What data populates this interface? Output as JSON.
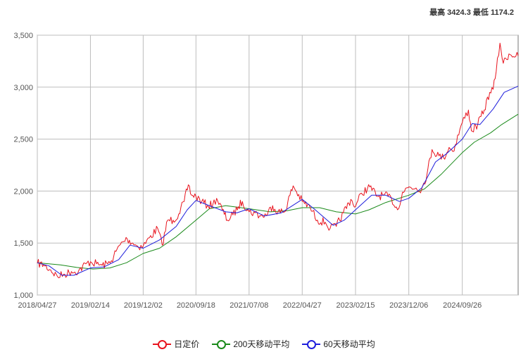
{
  "header": {
    "high_label": "最高",
    "high_value": "3424.3",
    "low_label": "最低",
    "low_value": "1174.2"
  },
  "colors": {
    "price": "#e8141e",
    "ma200": "#1a8a1a",
    "ma60": "#1f1fdc",
    "grid": "#bdbdbd",
    "axis": "#777777"
  },
  "chart_data": {
    "type": "line",
    "title": "",
    "xlabel": "",
    "ylabel": "",
    "ylim": [
      1000,
      3500
    ],
    "yticks": [
      1000,
      1500,
      2000,
      2500,
      3000,
      3500
    ],
    "ytick_labels": [
      "1,000",
      "1,500",
      "2,000",
      "2,500",
      "3,000",
      "3,500"
    ],
    "xlim": [
      "2018/04/27",
      "2025/07/31"
    ],
    "xticks": [
      "2018/04/27",
      "2019/02/14",
      "2019/12/02",
      "2020/09/18",
      "2021/07/08",
      "2022/04/27",
      "2023/02/15",
      "2023/12/06",
      "2024/09/26"
    ],
    "grid": true,
    "legend_position": "bottom",
    "series": [
      {
        "name": "日定价",
        "key": "price",
        "points": [
          [
            "2018/04/27",
            1305
          ],
          [
            "2018/06/01",
            1290
          ],
          [
            "2018/07/10",
            1240
          ],
          [
            "2018/08/16",
            1178
          ],
          [
            "2018/09/25",
            1200
          ],
          [
            "2018/11/01",
            1225
          ],
          [
            "2018/12/10",
            1230
          ],
          [
            "2019/01/20",
            1300
          ],
          [
            "2019/02/14",
            1320
          ],
          [
            "2019/03/20",
            1300
          ],
          [
            "2019/04/20",
            1285
          ],
          [
            "2019/05/20",
            1300
          ],
          [
            "2019/06/10",
            1330
          ],
          [
            "2019/07/05",
            1420
          ],
          [
            "2019/08/10",
            1510
          ],
          [
            "2019/09/05",
            1540
          ],
          [
            "2019/10/05",
            1500
          ],
          [
            "2019/11/01",
            1470
          ],
          [
            "2019/12/02",
            1470
          ],
          [
            "2020/01/05",
            1550
          ],
          [
            "2020/02/20",
            1640
          ],
          [
            "2020/03/16",
            1480
          ],
          [
            "2020/04/15",
            1720
          ],
          [
            "2020/05/15",
            1720
          ],
          [
            "2020/06/15",
            1780
          ],
          [
            "2020/07/15",
            1900
          ],
          [
            "2020/08/07",
            2060
          ],
          [
            "2020/08/25",
            1960
          ],
          [
            "2020/09/18",
            1950
          ],
          [
            "2020/10/20",
            1900
          ],
          [
            "2020/11/20",
            1860
          ],
          [
            "2020/12/20",
            1870
          ],
          [
            "2021/01/10",
            1930
          ],
          [
            "2021/02/10",
            1820
          ],
          [
            "2021/03/10",
            1720
          ],
          [
            "2021/04/10",
            1770
          ],
          [
            "2021/05/10",
            1850
          ],
          [
            "2021/06/01",
            1900
          ],
          [
            "2021/07/08",
            1800
          ],
          [
            "2021/08/10",
            1790
          ],
          [
            "2021/09/10",
            1760
          ],
          [
            "2021/10/10",
            1770
          ],
          [
            "2021/11/15",
            1860
          ],
          [
            "2021/12/15",
            1800
          ],
          [
            "2022/01/20",
            1800
          ],
          [
            "2022/03/08",
            2050
          ],
          [
            "2022/04/27",
            1900
          ],
          [
            "2022/06/10",
            1840
          ],
          [
            "2022/07/20",
            1720
          ],
          [
            "2022/09/01",
            1700
          ],
          [
            "2022/09/28",
            1640
          ],
          [
            "2022/11/01",
            1660
          ],
          [
            "2022/12/10",
            1790
          ],
          [
            "2023/01/20",
            1920
          ],
          [
            "2023/02/15",
            1850
          ],
          [
            "2023/03/20",
            1980
          ],
          [
            "2023/05/05",
            2040
          ],
          [
            "2023/06/15",
            1950
          ],
          [
            "2023/07/20",
            1960
          ],
          [
            "2023/09/01",
            1930
          ],
          [
            "2023/10/05",
            1820
          ],
          [
            "2023/11/01",
            1990
          ],
          [
            "2023/12/06",
            2040
          ],
          [
            "2024/01/15",
            2030
          ],
          [
            "2024/02/15",
            2020
          ],
          [
            "2024/03/15",
            2160
          ],
          [
            "2024/04/12",
            2400
          ],
          [
            "2024/05/20",
            2340
          ],
          [
            "2024/06/15",
            2320
          ],
          [
            "2024/07/15",
            2420
          ],
          [
            "2024/08/05",
            2380
          ],
          [
            "2024/09/26",
            2660
          ],
          [
            "2024/10/30",
            2780
          ],
          [
            "2024/11/15",
            2580
          ],
          [
            "2024/12/20",
            2640
          ],
          [
            "2025/01/25",
            2780
          ],
          [
            "2025/02/24",
            2950
          ],
          [
            "2025/03/15",
            2980
          ],
          [
            "2025/04/01",
            3150
          ],
          [
            "2025/04/22",
            3424
          ],
          [
            "2025/05/10",
            3230
          ],
          [
            "2025/06/10",
            3320
          ],
          [
            "2025/07/31",
            3300
          ]
        ]
      },
      {
        "name": "200天移动平均",
        "key": "ma200",
        "points": [
          [
            "2018/04/27",
            1310
          ],
          [
            "2018/09/01",
            1290
          ],
          [
            "2018/12/01",
            1265
          ],
          [
            "2019/03/01",
            1250
          ],
          [
            "2019/06/01",
            1260
          ],
          [
            "2019/09/01",
            1310
          ],
          [
            "2019/12/02",
            1400
          ],
          [
            "2020/03/01",
            1450
          ],
          [
            "2020/06/01",
            1560
          ],
          [
            "2020/09/18",
            1720
          ],
          [
            "2020/12/01",
            1830
          ],
          [
            "2021/03/01",
            1860
          ],
          [
            "2021/07/08",
            1830
          ],
          [
            "2021/11/01",
            1800
          ],
          [
            "2022/02/01",
            1810
          ],
          [
            "2022/04/27",
            1840
          ],
          [
            "2022/08/01",
            1840
          ],
          [
            "2022/11/01",
            1800
          ],
          [
            "2023/02/15",
            1780
          ],
          [
            "2023/05/01",
            1820
          ],
          [
            "2023/08/01",
            1890
          ],
          [
            "2023/12/06",
            1960
          ],
          [
            "2024/03/01",
            2020
          ],
          [
            "2024/06/01",
            2160
          ],
          [
            "2024/09/26",
            2370
          ],
          [
            "2024/12/01",
            2470
          ],
          [
            "2025/03/01",
            2560
          ],
          [
            "2025/05/01",
            2640
          ],
          [
            "2025/07/31",
            2740
          ]
        ]
      },
      {
        "name": "60天移动平均",
        "key": "ma60",
        "points": [
          [
            "2018/04/27",
            1310
          ],
          [
            "2018/07/01",
            1280
          ],
          [
            "2018/09/10",
            1190
          ],
          [
            "2018/11/15",
            1190
          ],
          [
            "2019/02/14",
            1260
          ],
          [
            "2019/05/01",
            1270
          ],
          [
            "2019/07/20",
            1340
          ],
          [
            "2019/09/20",
            1480
          ],
          [
            "2019/12/02",
            1450
          ],
          [
            "2020/03/01",
            1530
          ],
          [
            "2020/06/01",
            1660
          ],
          [
            "2020/08/01",
            1820
          ],
          [
            "2020/09/18",
            1910
          ],
          [
            "2020/12/01",
            1860
          ],
          [
            "2021/03/01",
            1800
          ],
          [
            "2021/05/01",
            1790
          ],
          [
            "2021/07/08",
            1830
          ],
          [
            "2021/10/01",
            1760
          ],
          [
            "2022/01/01",
            1790
          ],
          [
            "2022/04/27",
            1920
          ],
          [
            "2022/07/01",
            1830
          ],
          [
            "2022/10/15",
            1670
          ],
          [
            "2022/12/15",
            1720
          ],
          [
            "2023/02/15",
            1820
          ],
          [
            "2023/05/15",
            1960
          ],
          [
            "2023/08/01",
            1960
          ],
          [
            "2023/10/15",
            1900
          ],
          [
            "2023/12/06",
            1930
          ],
          [
            "2024/02/15",
            2030
          ],
          [
            "2024/05/01",
            2280
          ],
          [
            "2024/07/01",
            2360
          ],
          [
            "2024/09/26",
            2500
          ],
          [
            "2024/11/20",
            2650
          ],
          [
            "2025/01/01",
            2640
          ],
          [
            "2025/03/15",
            2790
          ],
          [
            "2025/05/15",
            2950
          ],
          [
            "2025/07/31",
            3010
          ]
        ]
      }
    ]
  }
}
